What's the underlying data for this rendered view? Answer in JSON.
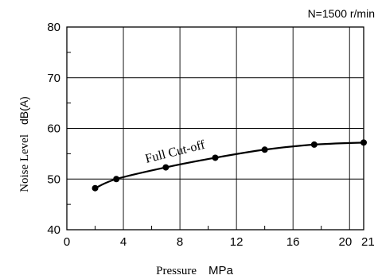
{
  "chart_data": {
    "type": "line",
    "title": "",
    "condition": "N=1500 r/min",
    "xlabel": "Pressure",
    "xunit": "MPa",
    "ylabel": "Noise Level",
    "yunit": "dB(A)",
    "xlim": [
      0,
      21
    ],
    "ylim": [
      40,
      80
    ],
    "x_ticks": [
      0,
      4,
      8,
      12,
      16,
      20,
      21
    ],
    "x_tick_labels": [
      "0",
      "4",
      "8",
      "12",
      "16",
      "20",
      "21"
    ],
    "y_ticks": [
      40,
      50,
      60,
      70,
      80
    ],
    "y_tick_labels": [
      "40",
      "50",
      "60",
      "70",
      "80"
    ],
    "x_gridlines": [
      4,
      8,
      12,
      16,
      20
    ],
    "y_gridlines": [
      50,
      60,
      70
    ],
    "grid": true,
    "annotation": "Full Cut-off",
    "series": [
      {
        "x": [
          2.0,
          3.5,
          7.0,
          10.5,
          14.0,
          17.5,
          21.0
        ],
        "y": [
          48.2,
          50.0,
          52.3,
          54.2,
          55.8,
          56.8,
          57.2
        ]
      }
    ]
  }
}
